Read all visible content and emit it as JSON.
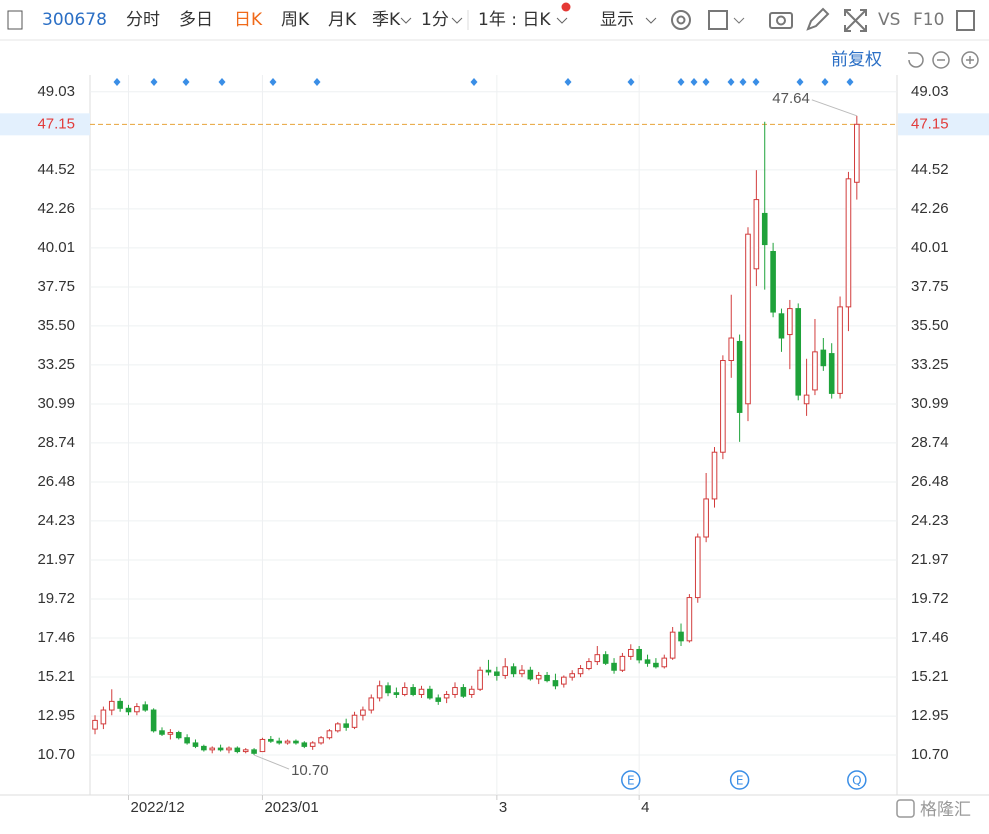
{
  "toolbar": {
    "code": "300678",
    "tabs": [
      "分时",
      "多日",
      "日K",
      "周K",
      "月K",
      "季K",
      "1分"
    ],
    "range": "1年 : 日K",
    "display": "显示",
    "vs": "VS",
    "f10": "F10",
    "adjust": "前复权"
  },
  "chart_data": {
    "type": "candlestick",
    "open": [
      12.2,
      12.5,
      13.3,
      13.8,
      13.4,
      13.2,
      13.6,
      13.3,
      12.1,
      11.9,
      12.0,
      11.7,
      11.4,
      11.2,
      11.0,
      11.1,
      11.0,
      11.1,
      10.9,
      11.0,
      10.9,
      11.6,
      11.5,
      11.4,
      11.5,
      11.4,
      11.2,
      11.4,
      11.7,
      12.1,
      12.5,
      12.3,
      13.0,
      13.3,
      14.0,
      14.7,
      14.3,
      14.2,
      14.6,
      14.2,
      14.5,
      14.0,
      14.0,
      14.2,
      14.6,
      14.2,
      14.5,
      15.6,
      15.5,
      15.3,
      15.8,
      15.4,
      15.6,
      15.1,
      15.3,
      15.0,
      14.8,
      15.2,
      15.4,
      15.7,
      16.1,
      16.5,
      16.0,
      15.6,
      16.4,
      16.8,
      16.2,
      16.0,
      15.8,
      16.3,
      17.8,
      17.3,
      19.8,
      23.3,
      25.5,
      28.2,
      33.5,
      34.6,
      31.0,
      38.8,
      42.0,
      39.8,
      36.2,
      35.0,
      36.5,
      31.0,
      31.8,
      34.1,
      33.9,
      31.6,
      36.6,
      43.8
    ],
    "high": [
      13.0,
      13.5,
      14.5,
      14.0,
      13.6,
      13.7,
      13.8,
      13.4,
      12.3,
      12.2,
      12.1,
      11.9,
      11.6,
      11.3,
      11.2,
      11.3,
      11.2,
      11.2,
      11.1,
      11.1,
      11.7,
      11.8,
      11.7,
      11.6,
      11.6,
      11.5,
      11.5,
      11.8,
      12.2,
      12.6,
      12.8,
      13.2,
      13.5,
      14.2,
      15.0,
      14.9,
      14.6,
      14.9,
      14.8,
      14.7,
      14.7,
      14.2,
      14.4,
      14.9,
      14.8,
      14.7,
      15.8,
      16.2,
      15.8,
      16.3,
      16.0,
      15.9,
      15.8,
      15.5,
      15.5,
      15.4,
      15.3,
      15.6,
      15.9,
      16.3,
      17.0,
      16.7,
      16.3,
      16.6,
      17.1,
      17.0,
      16.5,
      16.3,
      16.5,
      18.1,
      18.3,
      20.0,
      23.5,
      27.0,
      28.5,
      33.8,
      37.3,
      35.0,
      41.2,
      44.5,
      47.3,
      40.3,
      36.5,
      37.0,
      36.8,
      33.6,
      35.9,
      34.8,
      34.5,
      37.2,
      44.4,
      47.64
    ],
    "low": [
      11.9,
      12.2,
      13.0,
      13.2,
      13.0,
      13.0,
      13.2,
      12.0,
      11.8,
      11.6,
      11.6,
      11.3,
      11.1,
      10.9,
      10.8,
      10.9,
      10.8,
      10.8,
      10.8,
      10.7,
      10.9,
      11.4,
      11.3,
      11.3,
      11.3,
      11.1,
      11.0,
      11.3,
      11.6,
      12.0,
      12.1,
      12.2,
      12.7,
      13.1,
      13.8,
      14.1,
      14.0,
      14.1,
      14.1,
      14.0,
      13.9,
      13.6,
      13.7,
      14.0,
      14.0,
      14.0,
      14.4,
      15.3,
      15.0,
      15.1,
      15.2,
      15.2,
      15.0,
      14.8,
      14.9,
      14.5,
      14.6,
      15.0,
      15.2,
      15.6,
      15.9,
      15.9,
      15.4,
      15.5,
      16.2,
      16.0,
      15.8,
      15.7,
      15.7,
      16.2,
      17.0,
      17.2,
      19.5,
      23.0,
      25.0,
      27.8,
      32.5,
      28.8,
      30.0,
      37.8,
      37.6,
      36.0,
      34.0,
      33.0,
      31.2,
      30.3,
      31.5,
      32.9,
      31.3,
      31.3,
      35.2,
      42.8
    ],
    "close": [
      12.7,
      13.3,
      13.8,
      13.4,
      13.2,
      13.5,
      13.3,
      12.1,
      11.9,
      12.0,
      11.7,
      11.4,
      11.2,
      11.0,
      11.1,
      11.0,
      11.1,
      10.9,
      11.0,
      10.8,
      11.6,
      11.5,
      11.4,
      11.5,
      11.4,
      11.2,
      11.4,
      11.7,
      12.1,
      12.5,
      12.3,
      13.0,
      13.3,
      14.0,
      14.7,
      14.3,
      14.2,
      14.6,
      14.2,
      14.5,
      14.0,
      13.8,
      14.2,
      14.6,
      14.1,
      14.5,
      15.6,
      15.5,
      15.3,
      15.8,
      15.4,
      15.6,
      15.1,
      15.3,
      15.0,
      14.7,
      15.2,
      15.4,
      15.7,
      16.1,
      16.5,
      16.0,
      15.6,
      16.4,
      16.8,
      16.2,
      16.0,
      15.8,
      16.3,
      17.8,
      17.3,
      19.8,
      23.3,
      25.5,
      28.2,
      33.5,
      34.8,
      30.5,
      40.8,
      42.8,
      40.2,
      36.3,
      34.8,
      36.5,
      31.5,
      31.5,
      34.0,
      33.2,
      31.6,
      36.6,
      44.0,
      47.15
    ],
    "up_color": "#d23c3c",
    "down_color": "#1fa23a",
    "xlim": [
      -0.6,
      95.8
    ],
    "xticks": [
      {
        "value": 4,
        "label": "2022/12"
      },
      {
        "value": 20,
        "label": "2023/01"
      },
      {
        "value": 48,
        "label": "3"
      },
      {
        "value": 65,
        "label": "4"
      }
    ],
    "ylim": [
      8.39,
      50.0
    ],
    "yticks": [
      {
        "value": 10.7,
        "label": "10.70"
      },
      12.95,
      15.21,
      17.46,
      19.72,
      21.97,
      24.23,
      26.48,
      28.74,
      30.99,
      33.25,
      {
        "value": 35.5,
        "label": "35.50"
      },
      37.75,
      40.01,
      42.26,
      44.52,
      49.03
    ],
    "price_line": {
      "value": 47.15,
      "label": "47.15",
      "color": "#e8a23a"
    },
    "annotations": [
      "47.64",
      "10.70"
    ],
    "events": [
      {
        "index": 64,
        "label": "E"
      },
      {
        "index": 77,
        "label": "E"
      },
      {
        "index": 91,
        "label": "Q"
      }
    ],
    "grid": true
  },
  "watermark": "格隆汇"
}
